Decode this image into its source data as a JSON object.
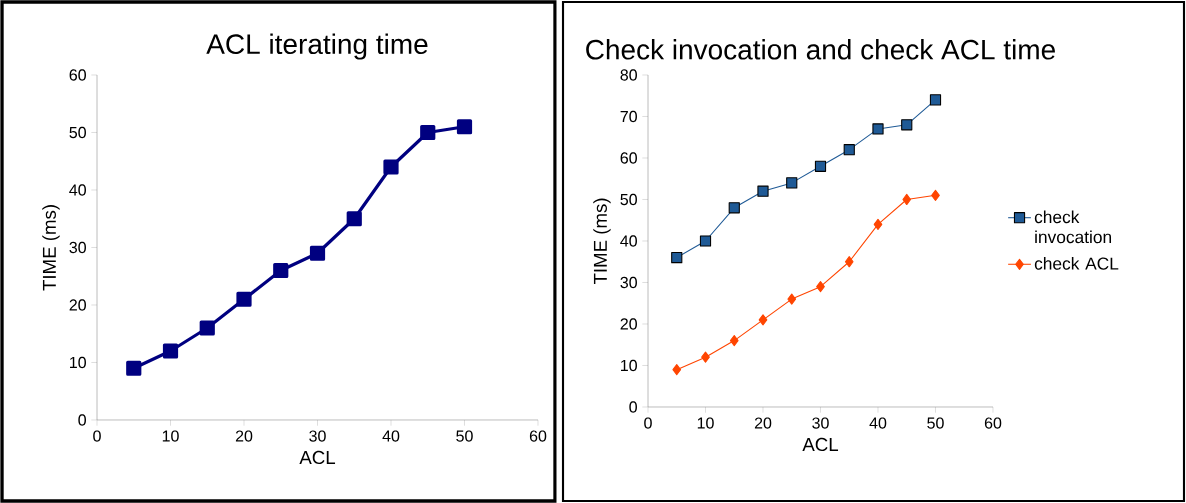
{
  "chart_data": [
    {
      "type": "line",
      "title": "ACL iterating time",
      "xlabel": "ACL",
      "ylabel": "TIME (ms)",
      "x": [
        5,
        10,
        15,
        20,
        25,
        30,
        35,
        40,
        45,
        50
      ],
      "values": [
        9,
        12,
        16,
        21,
        26,
        29,
        35,
        44,
        50,
        51
      ],
      "color": "#000080",
      "marker": "square",
      "xlim": [
        0,
        60
      ],
      "xticks": [
        0,
        10,
        20,
        30,
        40,
        50,
        60
      ],
      "ylim": [
        0,
        60
      ],
      "yticks": [
        0,
        10,
        20,
        30,
        40,
        50,
        60
      ],
      "grid": false,
      "legend": false
    },
    {
      "type": "line",
      "title": "Check invocation and check ACL time",
      "xlabel": "ACL",
      "ylabel": "TIME (ms)",
      "x": [
        5,
        10,
        15,
        20,
        25,
        30,
        35,
        40,
        45,
        50
      ],
      "series": [
        {
          "name": "check invocation",
          "color": "#1f5a96",
          "marker": "square",
          "values": [
            36,
            40,
            48,
            52,
            54,
            58,
            62,
            67,
            68,
            74
          ]
        },
        {
          "name": "check ACL",
          "color": "#ff4500",
          "marker": "diamond",
          "values": [
            9,
            12,
            16,
            21,
            26,
            29,
            35,
            44,
            50,
            51
          ]
        }
      ],
      "xlim": [
        0,
        60
      ],
      "xticks": [
        0,
        10,
        20,
        30,
        40,
        50,
        60
      ],
      "ylim": [
        0,
        80
      ],
      "yticks": [
        0,
        10,
        20,
        30,
        40,
        50,
        60,
        70,
        80
      ],
      "grid": false,
      "legend": "right"
    }
  ]
}
